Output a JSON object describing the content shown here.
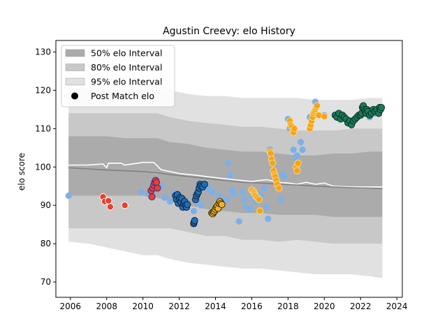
{
  "chart_data": {
    "type": "scatter",
    "title": "Agustin Creevy: elo History",
    "xlabel": "",
    "ylabel": "elo score",
    "xlim": [
      2005.2,
      2024.3
    ],
    "ylim": [
      66,
      133
    ],
    "x_ticks": [
      2006,
      2008,
      2010,
      2012,
      2014,
      2016,
      2018,
      2020,
      2022,
      2024
    ],
    "y_ticks": [
      70,
      80,
      90,
      100,
      110,
      120,
      130
    ],
    "grid": false,
    "legend": {
      "placement": "top-left",
      "entries": [
        {
          "label": "50% elo Interval",
          "kind": "band",
          "color": "#ababab"
        },
        {
          "label": "80% elo Interval",
          "kind": "band",
          "color": "#c8c8c8"
        },
        {
          "label": "95% elo Interval",
          "kind": "band",
          "color": "#e1e1e1"
        },
        {
          "label": "Post Match elo",
          "kind": "marker",
          "color": "#000000"
        }
      ]
    },
    "bands": {
      "x": [
        2005.9,
        2007.0,
        2008.0,
        2009.0,
        2010.0,
        2010.8,
        2011.5,
        2012.5,
        2013.5,
        2014.5,
        2015.5,
        2016.5,
        2017.5,
        2018.5,
        2019.5,
        2020.5,
        2021.5,
        2022.5,
        2023.2
      ],
      "p95_upper": [
        120.5,
        120.5,
        120.5,
        120.5,
        120,
        121,
        120,
        119,
        118.5,
        118.5,
        118,
        118,
        118,
        118,
        117.5,
        117.5,
        117.5,
        118,
        118
      ],
      "p80_upper": [
        114,
        114,
        114,
        114,
        114,
        114,
        113,
        112,
        111.5,
        111,
        110.5,
        110.5,
        110,
        109.5,
        109.5,
        109.5,
        110,
        110,
        110
      ],
      "p50_upper": [
        108,
        108,
        108,
        107.5,
        107.5,
        107.5,
        106.5,
        106,
        105,
        104.5,
        104,
        104,
        103.5,
        103,
        103,
        103.5,
        103.5,
        104,
        104
      ],
      "p50_lower": [
        92.5,
        92.5,
        92.5,
        92.5,
        92.5,
        92,
        91,
        90,
        89,
        88.5,
        88,
        88,
        87.5,
        87.5,
        87.5,
        87,
        87,
        87,
        87
      ],
      "p80_lower": [
        84,
        84,
        84,
        84,
        84,
        84,
        84,
        83,
        82,
        82,
        81,
        81,
        80.5,
        81,
        80.5,
        80,
        80,
        80,
        80
      ],
      "p95_lower": [
        80.5,
        80,
        79,
        78,
        77,
        77,
        76,
        75,
        74.5,
        74,
        73.5,
        73.5,
        73,
        72.5,
        72,
        72,
        72,
        71.5,
        71
      ]
    },
    "series": [
      {
        "kind": "line",
        "color": "#ffffff",
        "x": [
          2005.9,
          2007.0,
          2007.8,
          2008.0,
          2008.1,
          2008.8,
          2009.0,
          2010.0,
          2010.6,
          2011.0,
          2011.5,
          2012.0,
          2013.0,
          2014.0,
          2015.0,
          2016.0,
          2016.8,
          2017.5,
          2018.0,
          2018.5,
          2019.0,
          2019.5,
          2020.0,
          2020.5,
          2021.5,
          2022.5,
          2023.2
        ],
        "y": [
          100.5,
          100.5,
          100.8,
          99.8,
          101.0,
          101.0,
          100.5,
          101.2,
          101.2,
          99.3,
          98.8,
          98.3,
          97.8,
          97.2,
          96.7,
          96.2,
          96.7,
          96.0,
          95.8,
          95.5,
          96.0,
          95.5,
          95.8,
          95.0,
          94.8,
          94.8,
          94.8
        ]
      },
      {
        "kind": "line",
        "color": "#808080",
        "x": [
          2005.9,
          2007.0,
          2008.0,
          2009.0,
          2010.0,
          2010.8,
          2011.5,
          2012.5,
          2013.5,
          2014.5,
          2015.5,
          2016.5,
          2017.5,
          2018.5,
          2019.5,
          2020.5,
          2021.5,
          2022.5,
          2023.2
        ],
        "y": [
          99.8,
          99.5,
          99.2,
          99.0,
          98.8,
          98.5,
          98.0,
          97.5,
          97.0,
          96.5,
          96.0,
          95.8,
          95.5,
          95.3,
          95.0,
          94.8,
          94.6,
          94.5,
          94.3
        ]
      },
      {
        "kind": "points",
        "color": "#7db0e6",
        "stroke": "none",
        "x": [
          2005.9,
          2009.9,
          2010.3,
          2010.5,
          2010.6,
          2011.0,
          2011.2,
          2011.5,
          2011.7,
          2011.8,
          2012.8,
          2013.0,
          2013.2,
          2013.6,
          2013.8,
          2014.2,
          2014.6,
          2014.7,
          2014.8,
          2014.9,
          2015.0,
          2015.3,
          2015.5,
          2015.6,
          2015.7,
          2015.9,
          2016.0,
          2016.2,
          2016.5,
          2016.7,
          2016.8,
          2016.9,
          2017.0,
          2017.6,
          2017.7,
          2017.8,
          2018.0,
          2018.1,
          2018.3,
          2018.4,
          2018.5,
          2018.7,
          2018.8,
          2019.2,
          2019.5,
          2019.7,
          2020.0,
          2022.5,
          2022.8,
          2023.0
        ],
        "y": [
          92.5,
          93.5,
          93.0,
          92.5,
          94.0,
          95.0,
          92.0,
          91.0,
          93.0,
          92.5,
          88.5,
          91.0,
          90.0,
          94.5,
          93.5,
          92.5,
          91.5,
          101.0,
          97.8,
          94.0,
          93.0,
          85.8,
          93.5,
          91.5,
          89.5,
          89.0,
          92.5,
          91.0,
          92.5,
          94.5,
          89.5,
          86.5,
          104.5,
          91.5,
          98.0,
          97.5,
          112.5,
          110.0,
          104.5,
          102.5,
          103.0,
          106.5,
          104.5,
          113.0,
          117.0,
          113.5,
          113.5,
          113.0,
          114.0,
          115.0
        ]
      },
      {
        "kind": "points",
        "color": "#e8402a",
        "stroke": "#ffffff",
        "x": [
          2007.8,
          2007.9,
          2008.1,
          2008.2,
          2009.0
        ],
        "y": [
          92.2,
          91.0,
          91.2,
          89.6,
          90.0
        ]
      },
      {
        "kind": "points",
        "color": "#e8402a",
        "stroke": "#2a2aa0",
        "x": [
          2010.45,
          2010.5,
          2010.55,
          2010.6,
          2010.65,
          2010.7,
          2010.75,
          2010.8
        ],
        "y": [
          93.8,
          92.2,
          94.5,
          95.3,
          96.0,
          96.5,
          96.0,
          94.5
        ]
      },
      {
        "kind": "points",
        "color": "#1f6fb0",
        "stroke": "#0a1a3a",
        "x": [
          2011.8,
          2011.85,
          2011.9,
          2011.95,
          2012.0,
          2012.05,
          2012.1,
          2012.15,
          2012.2,
          2012.25,
          2012.3,
          2012.35,
          2012.4,
          2012.45,
          2012.8,
          2012.82,
          2012.85,
          2012.9,
          2012.95,
          2013.0,
          2013.05,
          2013.1,
          2013.15,
          2013.2,
          2013.3,
          2013.4
        ],
        "y": [
          92.5,
          91.5,
          92.8,
          90.5,
          91.5,
          92.0,
          90.8,
          91.8,
          89.5,
          90.5,
          91.0,
          90.0,
          89.5,
          90.2,
          85.2,
          85.6,
          86.0,
          91.5,
          92.5,
          93.0,
          93.5,
          94.5,
          95.5,
          95.0,
          94.8,
          95.5
        ]
      },
      {
        "kind": "points",
        "color": "#f0b429",
        "stroke": "#2a2000",
        "x": [
          2013.8,
          2013.85,
          2013.9,
          2013.95,
          2014.0,
          2014.05,
          2014.1,
          2014.15,
          2014.2,
          2014.25,
          2014.3,
          2014.35
        ],
        "y": [
          88.0,
          87.8,
          88.2,
          88.5,
          89.0,
          89.5,
          89.8,
          89.2,
          90.5,
          91.0,
          90.5,
          90.2
        ]
      },
      {
        "kind": "points",
        "color": "#f7a21b",
        "stroke": "#f7e08a",
        "x": [
          2016.0,
          2016.1,
          2016.15,
          2016.2,
          2016.3,
          2016.4,
          2016.45,
          2017.0,
          2017.05,
          2017.1,
          2017.15,
          2017.2,
          2017.25,
          2017.3,
          2017.35,
          2017.4,
          2017.5,
          2018.1,
          2018.15,
          2018.2,
          2018.25,
          2018.3,
          2018.35,
          2018.45,
          2018.5,
          2018.55,
          2019.2,
          2019.25,
          2019.3,
          2019.35,
          2019.4,
          2019.45,
          2019.5,
          2019.55,
          2019.6,
          2019.7,
          2020.0
        ],
        "y": [
          94.0,
          93.5,
          93.0,
          92.5,
          92.0,
          91.5,
          88.5,
          104.0,
          103.5,
          102.0,
          101.0,
          99.0,
          98.0,
          97.5,
          96.5,
          95.5,
          94.5,
          112.0,
          111.0,
          110.5,
          109.5,
          109.0,
          110.0,
          100.0,
          99.0,
          101.0,
          110.0,
          111.0,
          112.0,
          113.0,
          114.0,
          114.5,
          115.0,
          115.5,
          116.0,
          113.5,
          113.2
        ]
      },
      {
        "kind": "points",
        "color": "#1a7a5a",
        "stroke": "#062a1e",
        "x": [
          2020.6,
          2020.7,
          2020.8,
          2020.9,
          2021.0,
          2021.1,
          2021.2,
          2021.3,
          2021.4,
          2021.5,
          2021.6,
          2021.7,
          2021.8,
          2021.9,
          2022.0,
          2022.05,
          2022.1,
          2022.15,
          2022.2,
          2022.25,
          2022.3,
          2022.35,
          2022.4,
          2022.5,
          2022.6,
          2022.7,
          2022.8,
          2022.9,
          2023.0,
          2023.05,
          2023.1,
          2023.15
        ],
        "y": [
          113.5,
          113.0,
          114.0,
          112.5,
          113.5,
          113.0,
          112.5,
          111.5,
          112.0,
          111.0,
          112.0,
          112.5,
          113.0,
          113.5,
          113.5,
          114.0,
          115.5,
          116.0,
          115.0,
          114.5,
          114.0,
          115.0,
          114.5,
          113.5,
          114.0,
          115.0,
          114.5,
          115.0,
          114.0,
          115.5,
          115.0,
          115.5
        ]
      }
    ]
  }
}
